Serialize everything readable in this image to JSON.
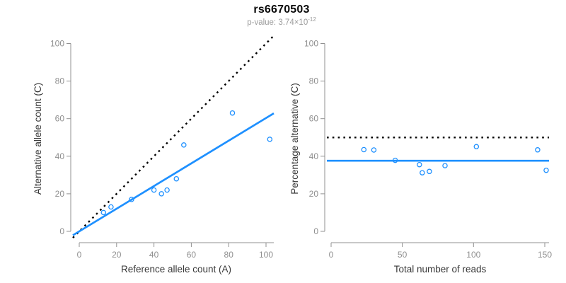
{
  "title": "rs6670503",
  "subtitle": {
    "label": "p-value: 3.74×10",
    "exponent": "-12"
  },
  "colors": {
    "accent_blue": "#1E90FF",
    "dotted_black": "#000000",
    "axis_gray": "#909090",
    "tick_label_gray": "#8f8f8f",
    "axis_title_color": "#383838",
    "subtitle_gray": "#9b9b9b"
  },
  "chart_data": [
    {
      "type": "scatter",
      "panel": "left",
      "xlabel": "Reference allele count (A)",
      "ylabel": "Alternative allele count (C)",
      "xlim": [
        0,
        100
      ],
      "ylim": [
        0,
        100
      ],
      "xticks": [
        0,
        20,
        40,
        60,
        80,
        100
      ],
      "yticks": [
        0,
        20,
        40,
        60,
        80,
        100
      ],
      "grid": false,
      "point_style": "open-circle",
      "points": [
        [
          13,
          10
        ],
        [
          17,
          13
        ],
        [
          28,
          17
        ],
        [
          40,
          22
        ],
        [
          44,
          20
        ],
        [
          47,
          22
        ],
        [
          52,
          28
        ],
        [
          56,
          46
        ],
        [
          82,
          63
        ],
        [
          102,
          49
        ]
      ],
      "lines": [
        {
          "name": "identity-line",
          "style": "dotted",
          "color": "#000000",
          "slope": 1,
          "intercept": 0
        },
        {
          "name": "fit-line",
          "style": "solid",
          "color": "#1E90FF",
          "slope": 0.603,
          "intercept": 0
        }
      ]
    },
    {
      "type": "scatter",
      "panel": "right",
      "xlabel": "Total number of reads",
      "ylabel": "Percentage alternative (C)",
      "xlim": [
        0,
        150
      ],
      "ylim": [
        0,
        100
      ],
      "xticks": [
        0,
        50,
        100,
        150
      ],
      "yticks": [
        0,
        20,
        40,
        60,
        80,
        100
      ],
      "grid": false,
      "point_style": "open-circle",
      "points": [
        [
          23,
          43.5
        ],
        [
          30,
          43.3
        ],
        [
          45,
          37.8
        ],
        [
          62,
          35.5
        ],
        [
          64,
          31.2
        ],
        [
          69,
          31.9
        ],
        [
          80,
          35.0
        ],
        [
          102,
          45.1
        ],
        [
          145,
          43.4
        ],
        [
          151,
          32.5
        ]
      ],
      "lines": [
        {
          "name": "expected-50pct-line",
          "style": "dotted",
          "color": "#000000",
          "slope": 0,
          "intercept": 50
        },
        {
          "name": "mean-alt-pct-line",
          "style": "solid",
          "color": "#1E90FF",
          "slope": 0,
          "intercept": 37.6
        }
      ]
    }
  ]
}
